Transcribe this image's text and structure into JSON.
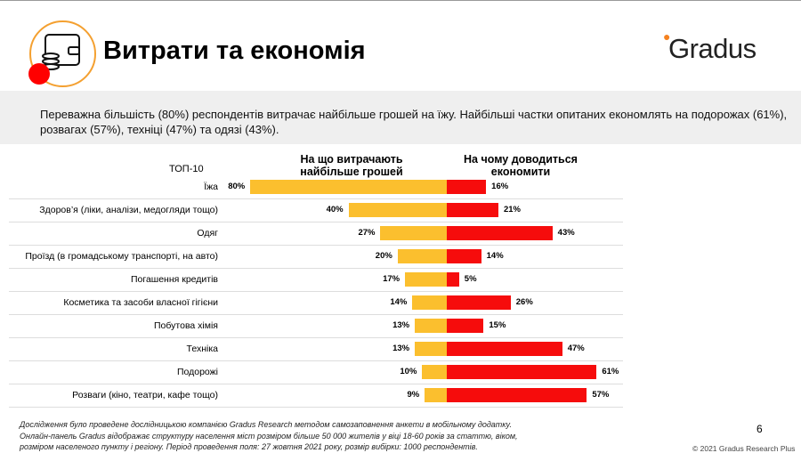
{
  "title": "Витрати та економія",
  "logo": "Gradus",
  "summary": "Переважна більшість (80%) респондентів витрачає найбільше грошей на їжу. Найбільші частки опитаних економлять на подорожах (61%), розвагах (57%), техніці (47%) та одязі (43%).",
  "chart_data": {
    "type": "bar",
    "title": "ТОП-10",
    "series": [
      {
        "name": "На що витрачають найбільше грошей",
        "color": "#fbbf2e",
        "values": [
          80,
          40,
          27,
          20,
          17,
          14,
          13,
          13,
          10,
          9
        ]
      },
      {
        "name": "На чому доводиться економити",
        "color": "#f60c0c",
        "values": [
          16,
          21,
          43,
          14,
          5,
          26,
          15,
          47,
          61,
          57
        ]
      }
    ],
    "categories": [
      "Їжа",
      "Здоров’я (ліки, аналізи, медогляди тощо)",
      "Одяг",
      "Проїзд (в громадському транспорті, на авто)",
      "Погашення кредитів",
      "Косметика та засоби власної гігієни",
      "Побутова хімія",
      "Техніка",
      "Подорожі",
      "Розваги (кіно, театри, кафе тощо)"
    ],
    "unit": "%"
  },
  "footnote": "Дослідження було проведене дослідницькою компанією Gradus Research методом самозаповнення анкети в мобільному додатку. Онлайн-панель Gradus відображає структуру населення міст розміром більше 50 000 жителів у віці 18-60 років за статтю, віком, розміром населеного пункту і регіону. Період проведення поля: 27 жовтня 2021 року, розмір вибірки: 1000 респондентів.",
  "page": "6",
  "copyright": "© 2021 Gradus Research Plus"
}
